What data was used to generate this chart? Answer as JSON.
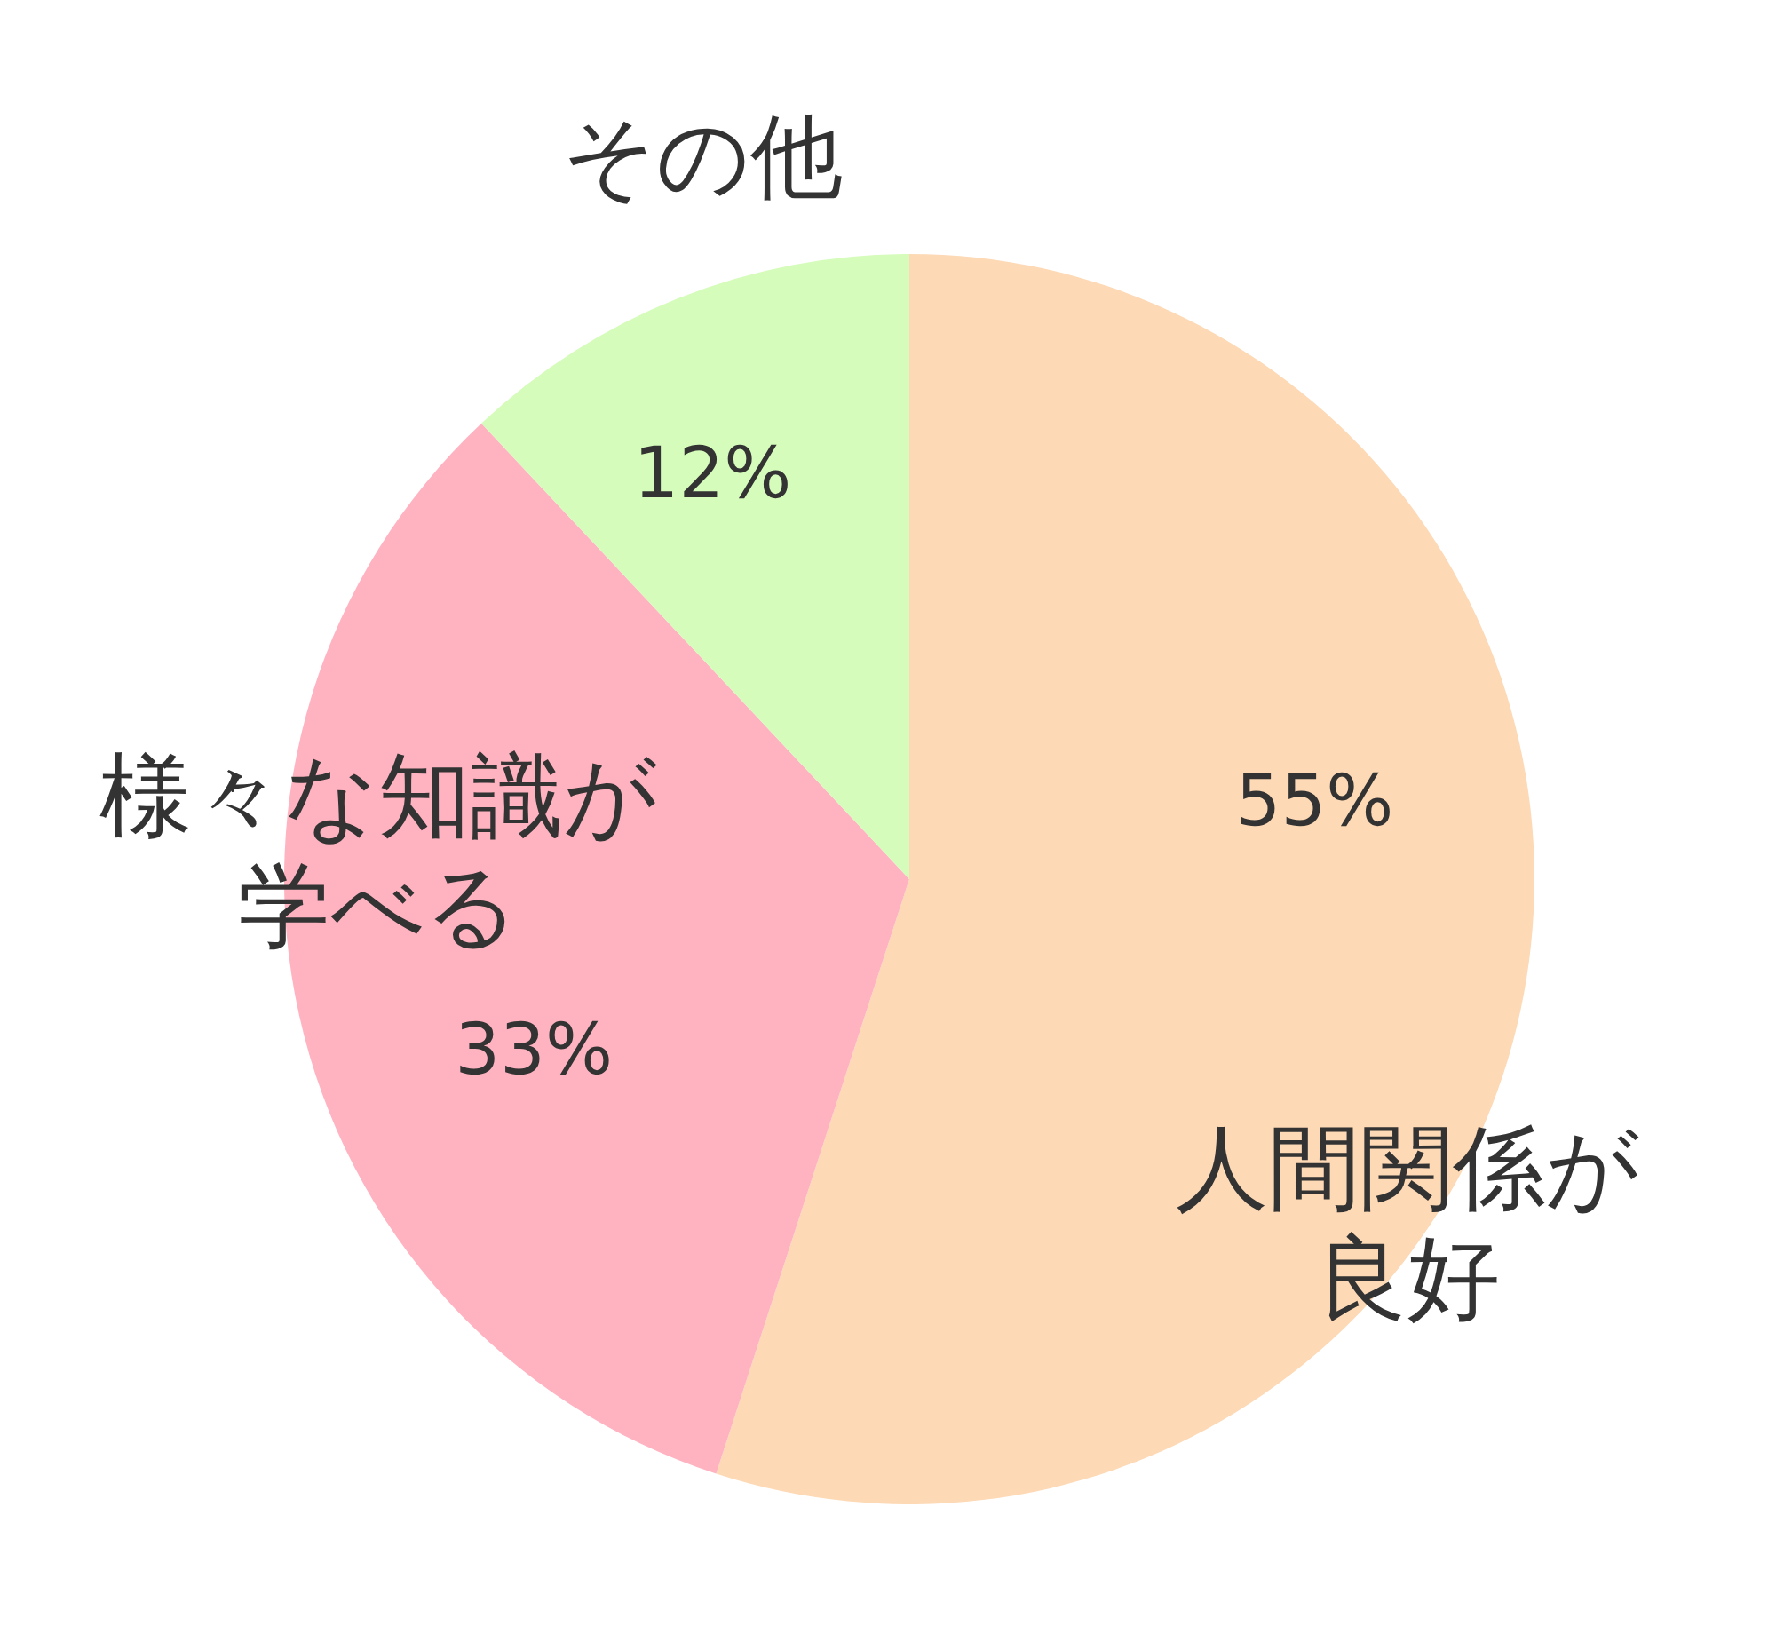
{
  "chart_data": {
    "type": "pie",
    "categories": [
      "人間関係が良好",
      "様々な知識が学べる",
      "その他"
    ],
    "values": [
      55,
      33,
      12
    ],
    "colors": [
      "#fdd9b5",
      "#ffb3c0",
      "#d5fcbb"
    ],
    "value_labels": [
      "55%",
      "33%",
      "12%"
    ]
  }
}
